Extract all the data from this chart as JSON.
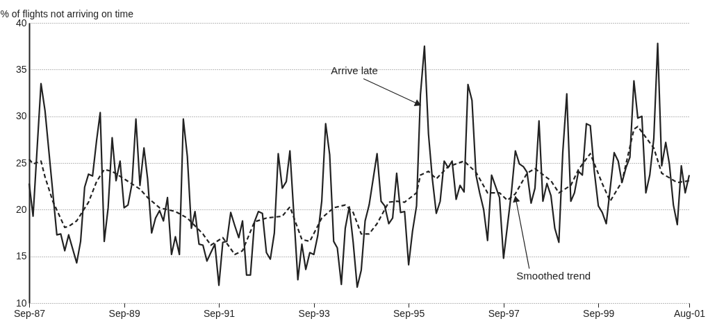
{
  "chart_data": {
    "type": "line",
    "ylabel": "% of flights not arriving on time",
    "ylim": [
      10,
      40
    ],
    "yticks": [
      10,
      15,
      20,
      25,
      30,
      35,
      40
    ],
    "xlim": [
      "1987-09",
      "2001-08"
    ],
    "xticks": [
      {
        "value": "1987-09",
        "label": "Sep-87"
      },
      {
        "value": "1989-09",
        "label": "Sep-89"
      },
      {
        "value": "1991-09",
        "label": "Sep-91"
      },
      {
        "value": "1993-09",
        "label": "Sep-93"
      },
      {
        "value": "1995-09",
        "label": "Sep-95"
      },
      {
        "value": "1997-09",
        "label": "Sep-97"
      },
      {
        "value": "1999-09",
        "label": "Sep-99"
      },
      {
        "value": "2001-08",
        "label": "Aug-01"
      }
    ],
    "grid": "y",
    "marker": "none",
    "series": [
      {
        "color": "#222222",
        "line_style": "solid",
        "x": [
          "1987-09",
          "1987-10",
          "1987-12",
          "1988-01",
          "1988-04",
          "1988-05",
          "1988-06",
          "1988-07",
          "1988-09",
          "1988-10",
          "1988-11",
          "1988-12",
          "1989-01",
          "1989-02",
          "1989-03",
          "1989-04",
          "1989-05",
          "1989-06",
          "1989-07",
          "1989-08",
          "1989-09",
          "1989-10",
          "1989-11",
          "1989-12",
          "1990-01",
          "1990-02",
          "1990-03",
          "1990-04",
          "1990-05",
          "1990-06",
          "1990-07",
          "1990-08",
          "1990-09",
          "1990-10",
          "1990-11",
          "1990-12",
          "1991-01",
          "1991-02",
          "1991-03",
          "1991-04",
          "1991-05",
          "1991-06",
          "1991-07",
          "1991-08",
          "1991-09",
          "1991-10",
          "1991-11",
          "1991-12",
          "1992-01",
          "1992-02",
          "1992-03",
          "1992-04",
          "1992-05",
          "1992-06",
          "1992-07",
          "1992-08",
          "1992-09",
          "1992-10",
          "1992-11",
          "1992-12",
          "1993-01",
          "1993-02",
          "1993-03",
          "1993-05",
          "1993-06",
          "1993-07",
          "1993-08",
          "1993-09",
          "1993-10",
          "1993-11",
          "1993-12",
          "1994-01",
          "1994-02",
          "1994-03",
          "1994-04",
          "1994-05",
          "1994-06",
          "1994-07",
          "1994-08",
          "1994-09",
          "1994-10",
          "1994-11",
          "1995-01",
          "1995-02",
          "1995-03",
          "1995-04",
          "1995-05",
          "1995-06",
          "1995-07",
          "1995-08",
          "1995-09",
          "1995-10",
          "1995-11",
          "1995-12",
          "1996-01",
          "1996-02",
          "1996-03",
          "1996-04",
          "1996-05",
          "1996-06",
          "1996-07",
          "1996-08",
          "1996-09",
          "1996-10",
          "1996-11",
          "1996-12",
          "1997-01",
          "1997-02",
          "1997-03",
          "1997-04",
          "1997-05",
          "1997-06",
          "1997-08",
          "1997-09",
          "1997-11",
          "1997-12",
          "1998-01",
          "1998-02",
          "1998-03",
          "1998-04",
          "1998-05",
          "1998-06",
          "1998-07",
          "1998-08",
          "1998-09",
          "1998-10",
          "1998-11",
          "1998-12",
          "1999-01",
          "1999-02",
          "1999-03",
          "1999-04",
          "1999-05",
          "1999-06",
          "1999-07",
          "1999-08",
          "1999-09",
          "1999-10",
          "1999-11",
          "2000-01",
          "2000-02",
          "2000-03",
          "2000-04",
          "2000-05",
          "2000-06",
          "2000-07",
          "2000-08",
          "2000-09",
          "2000-10",
          "2000-11",
          "2000-12",
          "2001-01",
          "2001-02",
          "2001-03",
          "2001-04",
          "2001-05",
          "2001-06",
          "2001-07",
          "2001-08"
        ],
        "values": [
          22.8,
          19.3,
          33.5,
          30.6,
          17.3,
          17.4,
          15.6,
          17.3,
          14.3,
          16.6,
          22.4,
          23.8,
          23.6,
          27.4,
          30.4,
          16.6,
          20.2,
          27.7,
          23.1,
          25.2,
          20.2,
          20.5,
          22.8,
          29.7,
          22.6,
          26.6,
          23.3,
          17.5,
          19.1,
          19.9,
          18.8,
          21.3,
          15.2,
          17.1,
          15.2,
          29.7,
          25.7,
          18.0,
          19.8,
          16.3,
          16.2,
          14.5,
          15.4,
          16.3,
          11.9,
          16.5,
          16.6,
          19.7,
          18.3,
          17.0,
          18.8,
          13.0,
          13.0,
          18.7,
          19.8,
          19.6,
          15.4,
          14.7,
          17.5,
          26.0,
          22.3,
          23.0,
          26.3,
          12.5,
          16.3,
          13.6,
          15.4,
          15.2,
          17.2,
          20.9,
          29.2,
          25.9,
          16.6,
          15.9,
          12.0,
          18.0,
          20.3,
          16.5,
          11.7,
          13.5,
          18.8,
          20.5,
          26.0,
          20.9,
          20.4,
          18.5,
          19.1,
          23.9,
          19.7,
          19.8,
          14.1,
          17.7,
          20.4,
          32.3,
          37.5,
          28.1,
          23.4,
          19.6,
          20.9,
          25.2,
          24.5,
          25.2,
          21.1,
          22.6,
          21.9,
          33.4,
          31.7,
          23.7,
          21.8,
          20.0,
          16.7,
          23.7,
          21.3,
          14.8,
          21.9,
          26.3,
          24.9,
          24.6,
          24.0,
          20.7,
          22.3,
          29.5,
          20.9,
          22.8,
          21.5,
          18.0,
          16.5,
          26.1,
          32.4,
          20.9,
          21.8,
          24.1,
          23.7,
          29.2,
          29.0,
          24.1,
          20.4,
          19.7,
          18.5,
          26.1,
          25.2,
          22.9,
          24.5,
          25.6,
          33.8,
          29.8,
          30.0,
          21.8,
          23.7,
          27.6,
          37.8,
          24.7,
          27.2,
          24.9,
          20.5,
          18.4,
          24.7,
          21.8,
          23.7
        ]
      },
      {
        "color": "#222222",
        "line_style": "dashed",
        "x": [
          "1987-09",
          "1987-10",
          "1987-12",
          "1988-01",
          "1988-03",
          "1988-06",
          "1988-07",
          "1988-09",
          "1988-12",
          "1989-02",
          "1989-04",
          "1989-06",
          "1989-09",
          "1990-01",
          "1990-03",
          "1990-06",
          "1990-10",
          "1991-01",
          "1991-05",
          "1991-07",
          "1991-10",
          "1992-01",
          "1992-03",
          "1992-06",
          "1992-09",
          "1993-01",
          "1993-03",
          "1993-06",
          "1993-08",
          "1993-11",
          "1994-02",
          "1994-05",
          "1994-07",
          "1994-09",
          "1994-11",
          "1995-01",
          "1995-04",
          "1995-06",
          "1995-08",
          "1995-11",
          "1995-12",
          "1996-02",
          "1996-04",
          "1996-07",
          "1996-11",
          "1997-02",
          "1997-05",
          "1997-08",
          "1997-10",
          "1997-12",
          "1998-03",
          "1998-05",
          "1998-09",
          "1998-11",
          "1999-02",
          "1999-04",
          "1999-07",
          "1999-10",
          "1999-12",
          "2000-03",
          "2000-06",
          "2000-07",
          "2000-11",
          "2001-01",
          "2001-05",
          "2001-08"
        ],
        "values": [
          25.4,
          24.9,
          25.2,
          23.5,
          20.9,
          18.1,
          18.2,
          18.8,
          20.8,
          23.0,
          24.3,
          24.1,
          23.3,
          22.2,
          21.3,
          20.2,
          19.8,
          19.1,
          17.4,
          16.2,
          17.0,
          15.2,
          15.6,
          18.7,
          19.1,
          19.3,
          20.3,
          16.8,
          16.6,
          19.1,
          20.2,
          20.5,
          19.7,
          17.4,
          17.4,
          18.5,
          20.8,
          20.9,
          20.8,
          21.8,
          23.7,
          24.1,
          23.3,
          24.6,
          25.2,
          24.0,
          21.8,
          21.8,
          21.0,
          21.7,
          23.9,
          24.4,
          23.1,
          21.8,
          22.6,
          24.3,
          26.0,
          22.8,
          20.9,
          23.0,
          28.6,
          28.9,
          26.6,
          23.9,
          22.9,
          23.1
        ]
      }
    ],
    "annotations": [
      {
        "text": "Arrive late",
        "x": "1995-12",
        "y": 31.2
      },
      {
        "text": "Smoothed trend",
        "x": "1997-12",
        "y": 21.4
      }
    ]
  }
}
